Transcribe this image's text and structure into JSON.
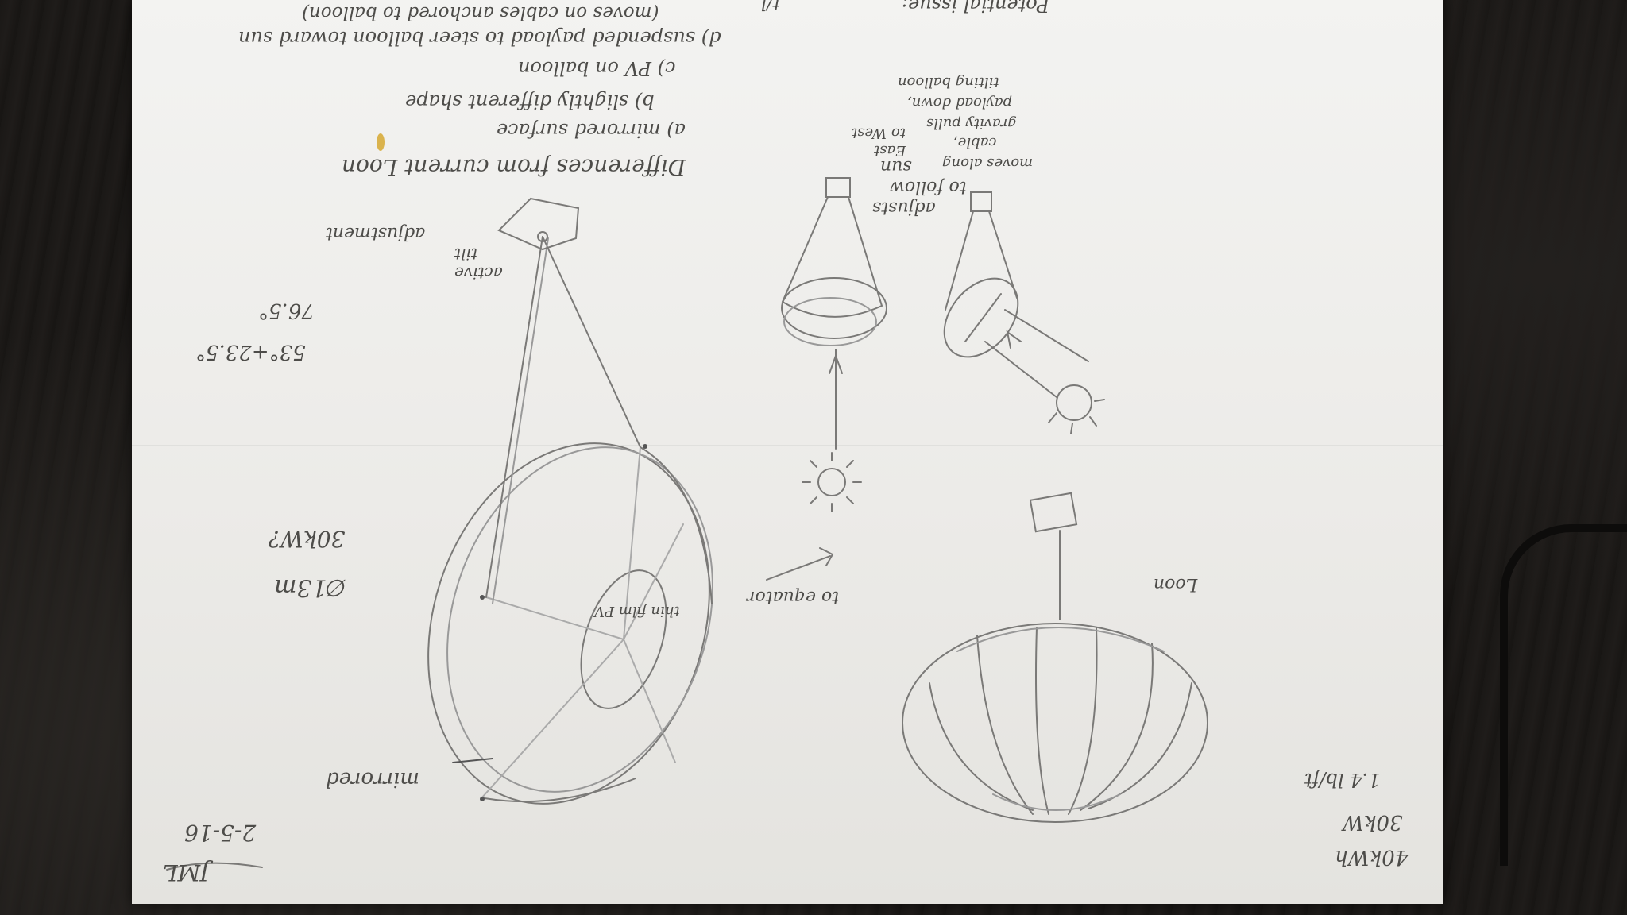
{
  "notes": {
    "differences_title": "Differences from current Loon",
    "item_a": "a) mirrored surface",
    "item_b": "b) slightly different shape",
    "item_c": "c) PV on balloon",
    "item_d": "d) suspended payload to steer balloon toward sun",
    "item_d_cont": "(moves on cables anchored to balloon)",
    "potential_issue": "Potential issue:",
    "top_fragment": "t/l",
    "active_tilt": "adjustment",
    "active_tilt_2": "tilt",
    "active_tilt_3": "active",
    "angle_calc": "53°+23.5°",
    "angle_result": "76.5°",
    "diameter": "∅13m",
    "power": "30kW?",
    "thin_film": "thin film PV",
    "mirrored": "mirrored",
    "to_equator": "to equator",
    "date": "2-5-16",
    "initials": "JML",
    "loon_label": "Loon",
    "loon_stat_1": "40kWh",
    "loon_stat_2": "30kW",
    "loon_stat_3": "1.4 lb/ft",
    "adjusts_1": "adjusts",
    "adjusts_2": "to follow",
    "adjusts_3": "sun",
    "east": "East",
    "west": "to West",
    "moves_along": "moves along",
    "cable_1": "cable,",
    "cable_2": "gravity pulls",
    "cable_3": "payload down,",
    "cable_4": "tilting balloon"
  }
}
